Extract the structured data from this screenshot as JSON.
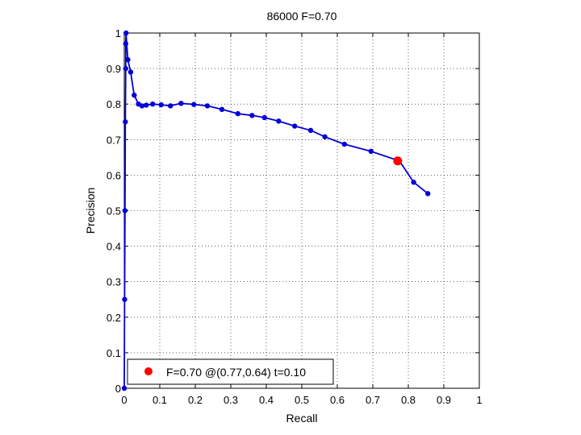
{
  "chart_data": {
    "type": "line",
    "title": "86000 F=0.70",
    "xlabel": "Recall",
    "ylabel": "Precision",
    "xlim": [
      0,
      1
    ],
    "ylim": [
      0,
      1
    ],
    "xticks": [
      0,
      0.1,
      0.2,
      0.3,
      0.4,
      0.5,
      0.6,
      0.7,
      0.8,
      0.9,
      1
    ],
    "yticks": [
      0,
      0.1,
      0.2,
      0.3,
      0.4,
      0.5,
      0.6,
      0.7,
      0.8,
      0.9,
      1
    ],
    "xtick_labels": [
      "0",
      "0.1",
      "0.2",
      "0.3",
      "0.4",
      "0.5",
      "0.6",
      "0.7",
      "0.8",
      "0.9",
      "1"
    ],
    "ytick_labels": [
      "0",
      "0.1",
      "0.2",
      "0.3",
      "0.4",
      "0.5",
      "0.6",
      "0.7",
      "0.8",
      "0.9",
      "1"
    ],
    "grid": true,
    "series": [
      {
        "color": "#0000d8",
        "x": [
          0.0,
          0.001,
          0.002,
          0.003,
          0.004,
          0.004,
          0.005,
          0.01,
          0.018,
          0.028,
          0.04,
          0.05,
          0.062,
          0.08,
          0.104,
          0.13,
          0.16,
          0.196,
          0.234,
          0.275,
          0.32,
          0.36,
          0.395,
          0.435,
          0.48,
          0.525,
          0.565,
          0.62,
          0.695,
          0.775,
          0.815,
          0.855
        ],
        "y": [
          0.0,
          0.25,
          0.5,
          0.75,
          0.9,
          0.97,
          1.0,
          0.925,
          0.89,
          0.825,
          0.8,
          0.795,
          0.797,
          0.8,
          0.798,
          0.795,
          0.802,
          0.799,
          0.795,
          0.785,
          0.773,
          0.768,
          0.762,
          0.752,
          0.738,
          0.726,
          0.708,
          0.687,
          0.667,
          0.64,
          0.58,
          0.548
        ]
      }
    ],
    "highlight": {
      "x": 0.77,
      "y": 0.64,
      "color": "#ff0000"
    },
    "legend": {
      "label": "F=0.70 @(0.77,0.64) t=0.10",
      "position": "bottom-left"
    }
  }
}
